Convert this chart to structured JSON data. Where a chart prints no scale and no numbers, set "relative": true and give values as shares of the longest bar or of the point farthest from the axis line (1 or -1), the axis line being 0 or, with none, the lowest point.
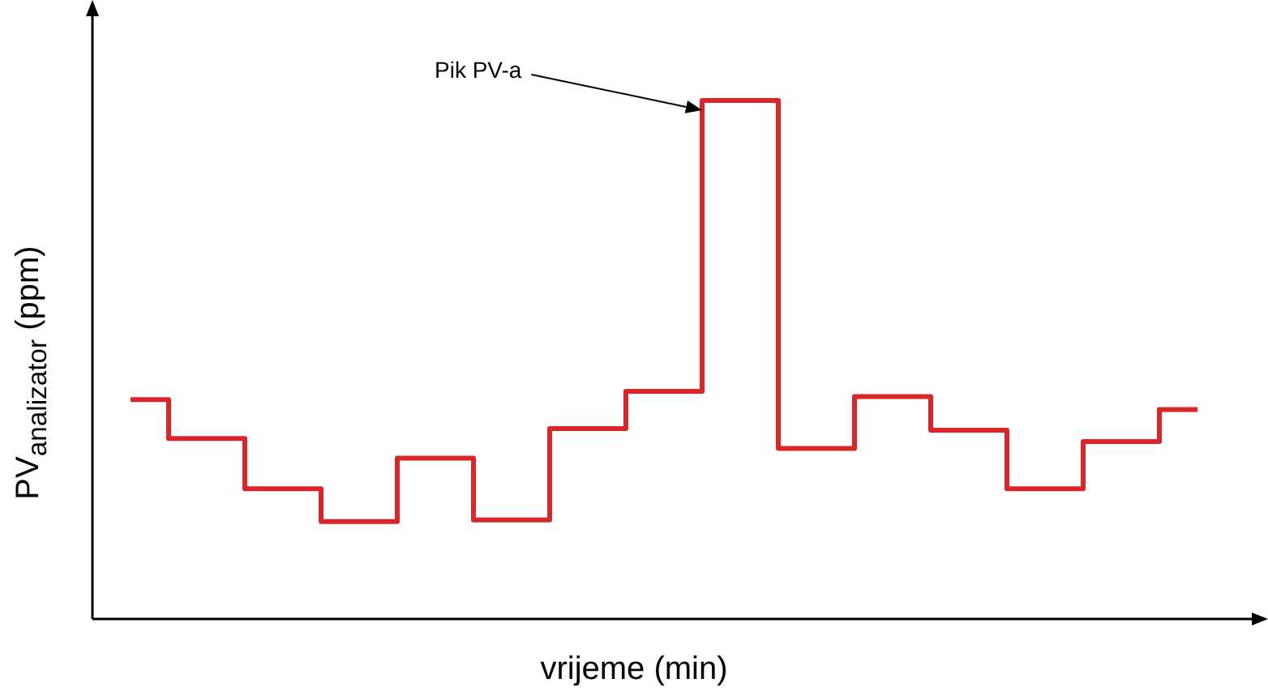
{
  "chart_data": {
    "type": "step",
    "relative": true,
    "tick_labels": false,
    "grid": false,
    "legend": false,
    "xlabel": "vrijeme (min)",
    "ylabel": "PV$_{analizator}$ (ppm)",
    "categories": [
      null,
      null,
      null,
      null,
      null,
      null,
      null,
      null,
      null,
      null,
      null,
      null,
      null,
      null,
      null
    ],
    "values": [
      0.423,
      0.348,
      0.251,
      0.188,
      0.31,
      0.191,
      0.367,
      0.439,
      1,
      0.329,
      0.429,
      0.364,
      0.251,
      0.342,
      0.404
    ],
    "color": "#d9262b",
    "annotations": [
      "Pik PV-a"
    ]
  }
}
